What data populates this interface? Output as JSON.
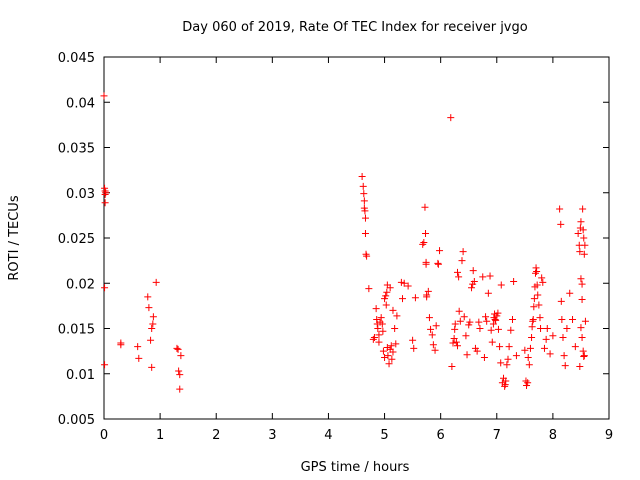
{
  "chart_data": {
    "type": "scatter",
    "title": "Day 060 of 2019, Rate Of TEC Index for receiver jvgo",
    "xlabel": "GPS time / hours",
    "ylabel": "ROTI / TECUs",
    "xlim": [
      0,
      9
    ],
    "ylim": [
      0.005,
      0.045
    ],
    "x_ticks": [
      0,
      1,
      2,
      3,
      4,
      5,
      6,
      7,
      8,
      9
    ],
    "x_tick_labels": [
      "0",
      "1",
      "2",
      "3",
      "4",
      "5",
      "6",
      "7",
      "8",
      "9"
    ],
    "y_ticks": [
      0.005,
      0.01,
      0.015,
      0.02,
      0.025,
      0.03,
      0.035,
      0.04,
      0.045
    ],
    "y_tick_labels": [
      "0.005",
      "0.01",
      "0.015",
      "0.02",
      "0.025",
      "0.03",
      "0.035",
      "0.04",
      "0.045"
    ],
    "grid": false,
    "legend": "none",
    "marker": "+",
    "marker_color": "#ff0000",
    "series": [
      {
        "name": "ROTI",
        "points": [
          [
            0.0,
            0.0407
          ],
          [
            0.01,
            0.0305
          ],
          [
            0.02,
            0.0302
          ],
          [
            0.02,
            0.0298
          ],
          [
            0.03,
            0.03
          ],
          [
            0.02,
            0.0289
          ],
          [
            0.01,
            0.0195
          ],
          [
            0.01,
            0.011
          ],
          [
            0.3,
            0.0134
          ],
          [
            0.3,
            0.0132
          ],
          [
            0.6,
            0.013
          ],
          [
            0.62,
            0.0117
          ],
          [
            0.78,
            0.0185
          ],
          [
            0.8,
            0.0173
          ],
          [
            0.83,
            0.0137
          ],
          [
            0.85,
            0.0107
          ],
          [
            0.85,
            0.015
          ],
          [
            0.87,
            0.0155
          ],
          [
            0.88,
            0.0163
          ],
          [
            0.93,
            0.0201
          ],
          [
            1.3,
            0.0128
          ],
          [
            1.32,
            0.0127
          ],
          [
            1.33,
            0.0103
          ],
          [
            1.35,
            0.0099
          ],
          [
            1.35,
            0.0083
          ],
          [
            1.37,
            0.012
          ],
          [
            4.6,
            0.0318
          ],
          [
            4.62,
            0.0307
          ],
          [
            4.63,
            0.0299
          ],
          [
            4.64,
            0.0291
          ],
          [
            4.64,
            0.0283
          ],
          [
            4.65,
            0.028
          ],
          [
            4.66,
            0.0272
          ],
          [
            4.66,
            0.0255
          ],
          [
            4.67,
            0.0232
          ],
          [
            4.68,
            0.023
          ],
          [
            4.72,
            0.0194
          ],
          [
            4.8,
            0.0138
          ],
          [
            4.82,
            0.014
          ],
          [
            4.85,
            0.0172
          ],
          [
            4.86,
            0.016
          ],
          [
            4.87,
            0.0155
          ],
          [
            4.88,
            0.015
          ],
          [
            4.9,
            0.0143
          ],
          [
            4.9,
            0.0135
          ],
          [
            4.92,
            0.0157
          ],
          [
            4.94,
            0.0162
          ],
          [
            4.96,
            0.0155
          ],
          [
            4.97,
            0.0147
          ],
          [
            4.98,
            0.0125
          ],
          [
            5.0,
            0.0118
          ],
          [
            5.0,
            0.0183
          ],
          [
            5.02,
            0.0186
          ],
          [
            5.03,
            0.0176
          ],
          [
            5.04,
            0.019
          ],
          [
            5.05,
            0.0129
          ],
          [
            5.06,
            0.012
          ],
          [
            5.08,
            0.0111
          ],
          [
            5.1,
            0.0127
          ],
          [
            5.12,
            0.0131
          ],
          [
            5.13,
            0.0116
          ],
          [
            5.15,
            0.0124
          ],
          [
            5.05,
            0.0198
          ],
          [
            5.1,
            0.0195
          ],
          [
            5.15,
            0.017
          ],
          [
            5.18,
            0.015
          ],
          [
            5.2,
            0.0133
          ],
          [
            5.22,
            0.0164
          ],
          [
            5.3,
            0.0201
          ],
          [
            5.32,
            0.0183
          ],
          [
            5.35,
            0.02
          ],
          [
            5.42,
            0.0197
          ],
          [
            5.5,
            0.0137
          ],
          [
            5.52,
            0.0128
          ],
          [
            5.55,
            0.0184
          ],
          [
            5.68,
            0.0243
          ],
          [
            5.7,
            0.0245
          ],
          [
            5.72,
            0.0284
          ],
          [
            5.73,
            0.0255
          ],
          [
            5.74,
            0.0223
          ],
          [
            5.74,
            0.0221
          ],
          [
            5.75,
            0.0187
          ],
          [
            5.75,
            0.0185
          ],
          [
            5.78,
            0.0191
          ],
          [
            5.8,
            0.0162
          ],
          [
            5.82,
            0.0149
          ],
          [
            5.85,
            0.0143
          ],
          [
            5.87,
            0.0132
          ],
          [
            5.9,
            0.0126
          ],
          [
            5.92,
            0.0153
          ],
          [
            5.95,
            0.0222
          ],
          [
            5.96,
            0.0221
          ],
          [
            5.98,
            0.0236
          ],
          [
            6.18,
            0.0383
          ],
          [
            6.2,
            0.0108
          ],
          [
            6.22,
            0.0134
          ],
          [
            6.24,
            0.0139
          ],
          [
            6.25,
            0.0149
          ],
          [
            6.26,
            0.0155
          ],
          [
            6.28,
            0.0135
          ],
          [
            6.3,
            0.0131
          ],
          [
            6.3,
            0.0212
          ],
          [
            6.32,
            0.0207
          ],
          [
            6.33,
            0.0169
          ],
          [
            6.35,
            0.0158
          ],
          [
            6.38,
            0.0225
          ],
          [
            6.4,
            0.0235
          ],
          [
            6.42,
            0.0163
          ],
          [
            6.45,
            0.0142
          ],
          [
            6.47,
            0.0121
          ],
          [
            6.5,
            0.0154
          ],
          [
            6.52,
            0.0157
          ],
          [
            6.55,
            0.0195
          ],
          [
            6.57,
            0.0199
          ],
          [
            6.58,
            0.0214
          ],
          [
            6.6,
            0.0202
          ],
          [
            6.62,
            0.0128
          ],
          [
            6.65,
            0.0125
          ],
          [
            6.68,
            0.0157
          ],
          [
            6.7,
            0.015
          ],
          [
            6.75,
            0.0207
          ],
          [
            6.78,
            0.0118
          ],
          [
            6.8,
            0.0163
          ],
          [
            6.82,
            0.0158
          ],
          [
            6.85,
            0.0189
          ],
          [
            6.88,
            0.0208
          ],
          [
            6.9,
            0.0148
          ],
          [
            6.92,
            0.0135
          ],
          [
            6.94,
            0.0155
          ],
          [
            6.95,
            0.0162
          ],
          [
            6.96,
            0.0166
          ],
          [
            6.97,
            0.016
          ],
          [
            6.98,
            0.0159
          ],
          [
            7.0,
            0.0164
          ],
          [
            7.02,
            0.0167
          ],
          [
            7.03,
            0.0149
          ],
          [
            7.05,
            0.013
          ],
          [
            7.07,
            0.0112
          ],
          [
            7.08,
            0.0198
          ],
          [
            7.1,
            0.009
          ],
          [
            7.12,
            0.0095
          ],
          [
            7.14,
            0.0086
          ],
          [
            7.15,
            0.0088
          ],
          [
            7.16,
            0.0092
          ],
          [
            7.18,
            0.011
          ],
          [
            7.2,
            0.0116
          ],
          [
            7.22,
            0.013
          ],
          [
            7.25,
            0.0148
          ],
          [
            7.28,
            0.016
          ],
          [
            7.3,
            0.0202
          ],
          [
            7.35,
            0.012
          ],
          [
            7.5,
            0.0126
          ],
          [
            7.52,
            0.0092
          ],
          [
            7.53,
            0.0087
          ],
          [
            7.55,
            0.009
          ],
          [
            7.56,
            0.0118
          ],
          [
            7.58,
            0.011
          ],
          [
            7.6,
            0.0128
          ],
          [
            7.62,
            0.014
          ],
          [
            7.63,
            0.0152
          ],
          [
            7.64,
            0.0158
          ],
          [
            7.65,
            0.016
          ],
          [
            7.66,
            0.0174
          ],
          [
            7.67,
            0.0183
          ],
          [
            7.68,
            0.0196
          ],
          [
            7.69,
            0.0211
          ],
          [
            7.7,
            0.0217
          ],
          [
            7.71,
            0.0213
          ],
          [
            7.72,
            0.0198
          ],
          [
            7.73,
            0.0187
          ],
          [
            7.75,
            0.0176
          ],
          [
            7.77,
            0.0162
          ],
          [
            7.78,
            0.015
          ],
          [
            7.8,
            0.0206
          ],
          [
            7.82,
            0.0201
          ],
          [
            7.85,
            0.0128
          ],
          [
            7.88,
            0.0138
          ],
          [
            7.9,
            0.015
          ],
          [
            7.95,
            0.0122
          ],
          [
            8.0,
            0.0142
          ],
          [
            8.12,
            0.0282
          ],
          [
            8.14,
            0.0265
          ],
          [
            8.15,
            0.018
          ],
          [
            8.16,
            0.016
          ],
          [
            8.18,
            0.014
          ],
          [
            8.2,
            0.012
          ],
          [
            8.22,
            0.0109
          ],
          [
            8.25,
            0.015
          ],
          [
            8.3,
            0.0189
          ],
          [
            8.35,
            0.016
          ],
          [
            8.4,
            0.013
          ],
          [
            8.45,
            0.0255
          ],
          [
            8.47,
            0.0242
          ],
          [
            8.48,
            0.0235
          ],
          [
            8.49,
            0.0261
          ],
          [
            8.5,
            0.0268
          ],
          [
            8.5,
            0.0205
          ],
          [
            8.52,
            0.0199
          ],
          [
            8.52,
            0.0182
          ],
          [
            8.53,
            0.0282
          ],
          [
            8.54,
            0.0259
          ],
          [
            8.55,
            0.025
          ],
          [
            8.56,
            0.0232
          ],
          [
            8.57,
            0.0242
          ],
          [
            8.5,
            0.0151
          ],
          [
            8.52,
            0.014
          ],
          [
            8.54,
            0.0125
          ],
          [
            8.55,
            0.0119
          ],
          [
            8.56,
            0.012
          ],
          [
            8.58,
            0.0158
          ],
          [
            8.48,
            0.0108
          ]
        ]
      }
    ]
  }
}
